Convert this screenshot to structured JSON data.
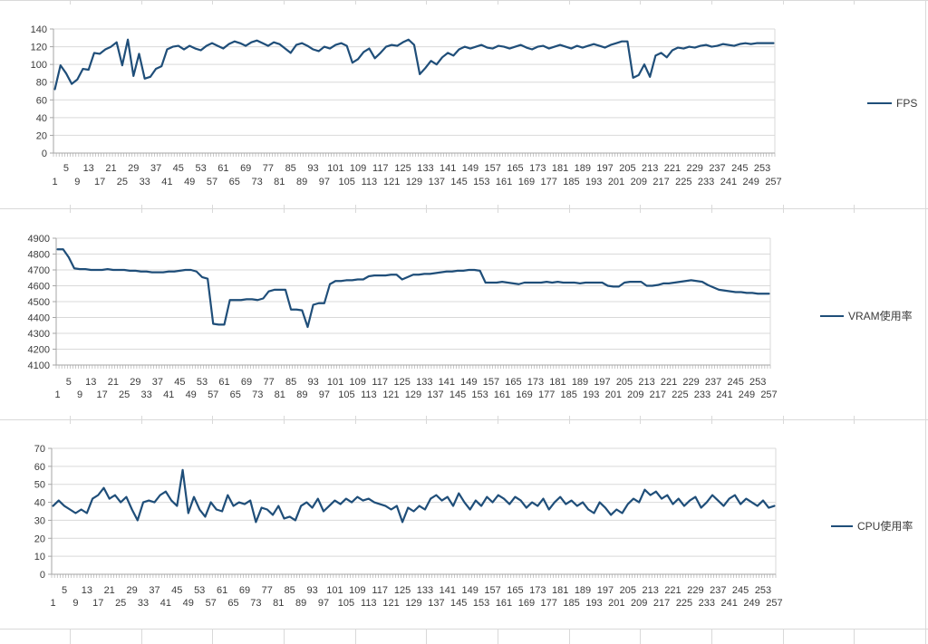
{
  "colors": {
    "series_line": "#1F4E79",
    "chart_gridline": "#D9D9D9",
    "axis_line": "#A6A6A6",
    "label_text": "#3B3B3B",
    "sheet_gridline": "#D9D9D9",
    "background": "#FFFFFF"
  },
  "chart_data": [
    {
      "type": "line",
      "series_name": "fps",
      "legend": "FPS",
      "line_color": "#1F4E79",
      "grid": true,
      "legend_position": "right",
      "ylim": [
        0,
        140
      ],
      "yticks": [
        0,
        20,
        40,
        60,
        80,
        100,
        120,
        140
      ],
      "x_categories": {
        "first": 1,
        "last": 257,
        "sampled_step": 2
      },
      "xtick_row_upper": [
        5,
        13,
        21,
        29,
        37,
        45,
        53,
        61,
        69,
        77,
        85,
        93,
        101,
        109,
        117,
        125,
        133,
        141,
        149,
        157,
        165,
        173,
        181,
        189,
        197,
        205,
        213,
        221,
        229,
        237,
        245,
        253
      ],
      "xtick_row_lower": [
        1,
        9,
        17,
        25,
        33,
        41,
        49,
        57,
        65,
        73,
        81,
        89,
        97,
        105,
        113,
        121,
        129,
        137,
        145,
        153,
        161,
        169,
        177,
        185,
        193,
        201,
        209,
        217,
        225,
        233,
        241,
        249,
        257
      ],
      "values": [
        72,
        99,
        90,
        78,
        83,
        95,
        94,
        113,
        112,
        117,
        120,
        125,
        99,
        128,
        87,
        112,
        84,
        86,
        95,
        98,
        117,
        120,
        121,
        117,
        121,
        118,
        116,
        121,
        124,
        121,
        118,
        123,
        126,
        124,
        121,
        125,
        127,
        124,
        121,
        125,
        123,
        118,
        113,
        122,
        124,
        121,
        117,
        115,
        120,
        118,
        122,
        124,
        121,
        102,
        106,
        114,
        118,
        107,
        113,
        120,
        122,
        121,
        125,
        128,
        122,
        89,
        96,
        104,
        100,
        108,
        113,
        110,
        117,
        120,
        118,
        120,
        122,
        119,
        118,
        121,
        120,
        118,
        120,
        122,
        119,
        117,
        120,
        121,
        118,
        120,
        122,
        120,
        118,
        121,
        119,
        121,
        123,
        121,
        119,
        122,
        124,
        126,
        126,
        85,
        88,
        100,
        86,
        110,
        113,
        108,
        116,
        119,
        118,
        120,
        119,
        121,
        122,
        120,
        121,
        123,
        122,
        121,
        123,
        124,
        123,
        124,
        124,
        124,
        124
      ]
    },
    {
      "type": "line",
      "series_name": "vram",
      "legend": "VRAM使用率",
      "line_color": "#1F4E79",
      "grid": true,
      "legend_position": "right",
      "ylim": [
        4100,
        4900
      ],
      "yticks": [
        4100,
        4200,
        4300,
        4400,
        4500,
        4600,
        4700,
        4800,
        4900
      ],
      "x_categories": {
        "first": 1,
        "last": 257,
        "sampled_step": 2
      },
      "xtick_row_upper": [
        5,
        13,
        21,
        29,
        37,
        45,
        53,
        61,
        69,
        77,
        85,
        93,
        101,
        109,
        117,
        125,
        133,
        141,
        149,
        157,
        165,
        173,
        181,
        189,
        197,
        205,
        213,
        221,
        229,
        237,
        245,
        253
      ],
      "xtick_row_lower": [
        1,
        9,
        17,
        25,
        33,
        41,
        49,
        57,
        65,
        73,
        81,
        89,
        97,
        105,
        113,
        121,
        129,
        137,
        145,
        153,
        161,
        169,
        177,
        185,
        193,
        201,
        209,
        217,
        225,
        233,
        241,
        249,
        257
      ],
      "values": [
        4830,
        4830,
        4780,
        4710,
        4705,
        4705,
        4700,
        4700,
        4700,
        4705,
        4700,
        4700,
        4700,
        4695,
        4695,
        4690,
        4690,
        4685,
        4685,
        4685,
        4690,
        4690,
        4695,
        4700,
        4700,
        4690,
        4655,
        4645,
        4360,
        4355,
        4355,
        4510,
        4510,
        4510,
        4515,
        4515,
        4510,
        4520,
        4565,
        4575,
        4575,
        4575,
        4450,
        4450,
        4445,
        4340,
        4480,
        4490,
        4490,
        4610,
        4630,
        4630,
        4635,
        4635,
        4640,
        4640,
        4660,
        4665,
        4665,
        4665,
        4670,
        4670,
        4640,
        4655,
        4670,
        4670,
        4675,
        4675,
        4680,
        4685,
        4690,
        4690,
        4695,
        4695,
        4700,
        4700,
        4695,
        4620,
        4620,
        4620,
        4625,
        4620,
        4615,
        4610,
        4620,
        4620,
        4620,
        4620,
        4625,
        4620,
        4625,
        4620,
        4620,
        4620,
        4615,
        4620,
        4620,
        4620,
        4620,
        4600,
        4595,
        4595,
        4620,
        4625,
        4625,
        4625,
        4600,
        4600,
        4605,
        4615,
        4615,
        4620,
        4625,
        4630,
        4635,
        4630,
        4625,
        4605,
        4590,
        4575,
        4570,
        4565,
        4560,
        4560,
        4555,
        4555,
        4550,
        4550,
        4550
      ]
    },
    {
      "type": "line",
      "series_name": "cpu",
      "legend": "CPU使用率",
      "line_color": "#1F4E79",
      "grid": true,
      "legend_position": "right",
      "ylim": [
        0,
        70
      ],
      "yticks": [
        0,
        10,
        20,
        30,
        40,
        50,
        60,
        70
      ],
      "x_categories": {
        "first": 1,
        "last": 257,
        "sampled_step": 2
      },
      "xtick_row_upper": [
        5,
        13,
        21,
        29,
        37,
        45,
        53,
        61,
        69,
        77,
        85,
        93,
        101,
        109,
        117,
        125,
        133,
        141,
        149,
        157,
        165,
        173,
        181,
        189,
        197,
        205,
        213,
        221,
        229,
        237,
        245,
        253
      ],
      "xtick_row_lower": [
        1,
        9,
        17,
        25,
        33,
        41,
        49,
        57,
        65,
        73,
        81,
        89,
        97,
        105,
        113,
        121,
        129,
        137,
        145,
        153,
        161,
        169,
        177,
        185,
        193,
        201,
        209,
        217,
        225,
        233,
        241,
        249,
        257
      ],
      "values": [
        38,
        41,
        38,
        36,
        34,
        36,
        34,
        42,
        44,
        48,
        42,
        44,
        40,
        43,
        36,
        30,
        40,
        41,
        40,
        44,
        46,
        41,
        38,
        58,
        34,
        43,
        36,
        32,
        40,
        36,
        35,
        44,
        38,
        40,
        39,
        41,
        29,
        37,
        36,
        33,
        38,
        31,
        32,
        30,
        38,
        40,
        37,
        42,
        35,
        38,
        41,
        39,
        42,
        40,
        43,
        41,
        42,
        40,
        39,
        38,
        36,
        38,
        29,
        37,
        35,
        38,
        36,
        42,
        44,
        41,
        43,
        38,
        45,
        40,
        36,
        41,
        38,
        43,
        40,
        44,
        42,
        39,
        43,
        41,
        37,
        40,
        38,
        42,
        36,
        40,
        43,
        39,
        41,
        38,
        40,
        36,
        34,
        40,
        37,
        33,
        36,
        34,
        39,
        42,
        40,
        47,
        44,
        46,
        42,
        44,
        39,
        42,
        38,
        41,
        43,
        37,
        40,
        44,
        41,
        38,
        42,
        44,
        39,
        42,
        40,
        38,
        41,
        37,
        38
      ]
    }
  ],
  "legends": {
    "fps": "FPS",
    "vram": "VRAM使用率",
    "cpu": "CPU使用率"
  }
}
